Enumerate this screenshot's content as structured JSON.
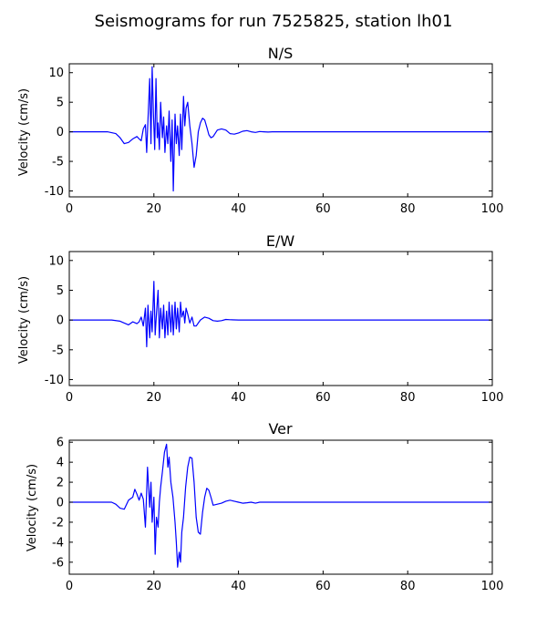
{
  "figure": {
    "title": "Seismograms for run 7525825, station lh01",
    "line_color": "#0000ff"
  },
  "chart_data": [
    {
      "type": "line",
      "title": "N/S",
      "xlabel": "",
      "ylabel": "Velocity (cm/s)",
      "xlim": [
        0,
        100
      ],
      "ylim": [
        -11,
        11.5
      ],
      "xticks": [
        0,
        20,
        40,
        60,
        80,
        100
      ],
      "yticks": [
        -10,
        -5,
        0,
        5,
        10
      ],
      "grid": false,
      "series": [
        {
          "x": [
            0,
            9,
            11,
            12,
            13,
            14,
            15,
            16,
            16.5,
            17,
            17.5,
            18,
            18.3,
            18.6,
            19,
            19.3,
            19.6,
            19.9,
            20.2,
            20.5,
            20.8,
            21,
            21.3,
            21.6,
            22,
            22.3,
            22.6,
            23,
            23.3,
            23.6,
            24,
            24.3,
            24.6,
            25,
            25.3,
            25.6,
            26,
            26.3,
            26.6,
            27,
            27.3,
            27.6,
            28,
            28.5,
            29,
            29.5,
            30,
            30.5,
            31,
            31.5,
            32,
            32.5,
            33,
            33.5,
            34,
            35,
            36,
            37,
            38,
            39,
            40,
            41,
            42,
            43,
            44,
            45,
            46,
            47,
            48,
            50,
            55,
            60,
            70,
            80,
            90,
            100
          ],
          "y": [
            0,
            0,
            -0.3,
            -1,
            -2,
            -1.8,
            -1.2,
            -0.8,
            -1.2,
            -1.5,
            0.5,
            1.2,
            -3.5,
            2,
            9,
            -2,
            11,
            3,
            -3,
            9,
            -1,
            1.5,
            -3,
            5,
            -1,
            2.5,
            -3.5,
            1,
            -2,
            3.5,
            -5,
            2,
            -10,
            3,
            -2,
            1,
            -4,
            3,
            -3,
            6,
            1,
            4,
            5,
            1,
            -2,
            -6,
            -4,
            0,
            1.5,
            2.3,
            2,
            0.8,
            -0.5,
            -1,
            -0.8,
            0.3,
            0.5,
            0.3,
            -0.3,
            -0.4,
            -0.2,
            0.1,
            0.2,
            0,
            -0.1,
            0.05,
            0,
            -0.05,
            0,
            0,
            0,
            0,
            0,
            0,
            0,
            0
          ]
        }
      ]
    },
    {
      "type": "line",
      "title": "E/W",
      "xlabel": "",
      "ylabel": "Velocity (cm/s)",
      "xlim": [
        0,
        100
      ],
      "ylim": [
        -11,
        11.5
      ],
      "xticks": [
        0,
        20,
        40,
        60,
        80,
        100
      ],
      "yticks": [
        -10,
        -5,
        0,
        5,
        10
      ],
      "grid": false,
      "series": [
        {
          "x": [
            0,
            10,
            12,
            13,
            14,
            15,
            16,
            16.5,
            17,
            17.5,
            18,
            18.3,
            18.6,
            19,
            19.3,
            19.6,
            20,
            20.3,
            20.6,
            21,
            21.3,
            21.6,
            22,
            22.3,
            22.6,
            23,
            23.3,
            23.6,
            24,
            24.3,
            24.6,
            25,
            25.3,
            25.6,
            26,
            26.3,
            26.6,
            27,
            27.3,
            27.6,
            28,
            28.5,
            29,
            29.5,
            30,
            30.5,
            31,
            32,
            33,
            34,
            35,
            36,
            37,
            38,
            40,
            45,
            50,
            60,
            80,
            100
          ],
          "y": [
            0,
            0,
            -0.2,
            -0.5,
            -0.8,
            -0.3,
            -0.6,
            -0.3,
            0.5,
            -1,
            2,
            -4.5,
            2.5,
            -3,
            1.5,
            -2,
            6.5,
            -2.5,
            1,
            5,
            -3,
            2,
            -1.5,
            2.5,
            -3,
            1.5,
            -2.5,
            3,
            -2,
            2.5,
            -2.5,
            3,
            -1.5,
            2,
            -2,
            3,
            0.5,
            1.5,
            -0.5,
            2,
            1,
            -0.5,
            0.5,
            -1,
            -1,
            -0.5,
            0,
            0.5,
            0.3,
            -0.1,
            -0.2,
            -0.1,
            0.1,
            0.05,
            0,
            0,
            0,
            0,
            0,
            0
          ]
        }
      ]
    },
    {
      "type": "line",
      "title": "Ver",
      "xlabel": "",
      "ylabel": "Velocity (cm/s)",
      "xlim": [
        0,
        100
      ],
      "ylim": [
        -7.2,
        6.2
      ],
      "xticks": [
        0,
        20,
        40,
        60,
        80,
        100
      ],
      "yticks": [
        -6,
        -4,
        -2,
        0,
        2,
        4,
        6
      ],
      "grid": false,
      "series": [
        {
          "x": [
            0,
            10,
            11,
            12,
            13,
            14,
            15,
            15.5,
            16,
            16.5,
            17,
            17.5,
            18,
            18.5,
            19,
            19.3,
            19.6,
            20,
            20.3,
            20.6,
            21,
            21.3,
            21.6,
            22,
            22.5,
            23,
            23.3,
            23.6,
            24,
            24.5,
            25,
            25.3,
            25.6,
            26,
            26.3,
            26.6,
            27,
            27.5,
            28,
            28.5,
            29,
            29.5,
            30,
            30.5,
            31,
            31.5,
            32,
            32.5,
            33,
            33.5,
            34,
            35,
            36,
            37,
            38,
            39,
            40,
            41,
            42,
            43,
            44,
            45,
            46,
            47,
            48,
            50,
            60,
            70,
            80,
            90,
            100
          ],
          "y": [
            0,
            0,
            -0.2,
            -0.6,
            -0.7,
            0.2,
            0.5,
            1.3,
            0.8,
            0.2,
            0.9,
            0.3,
            -2.5,
            3.5,
            -0.5,
            2,
            -2,
            0.5,
            -5.2,
            -1.5,
            -2.5,
            0,
            1.5,
            3,
            5,
            5.8,
            3.5,
            4.5,
            2,
            0.5,
            -2,
            -4,
            -6.5,
            -5,
            -6,
            -3,
            -1.5,
            1.5,
            3.5,
            4.5,
            4.4,
            2,
            -1.5,
            -3,
            -3.2,
            -1,
            0.5,
            1.4,
            1.2,
            0.5,
            -0.3,
            -0.2,
            -0.1,
            0.1,
            0.2,
            0.1,
            0,
            -0.1,
            -0.05,
            0,
            -0.1,
            0,
            0,
            0,
            0,
            0,
            0,
            0,
            0,
            0,
            0
          ]
        }
      ]
    }
  ]
}
